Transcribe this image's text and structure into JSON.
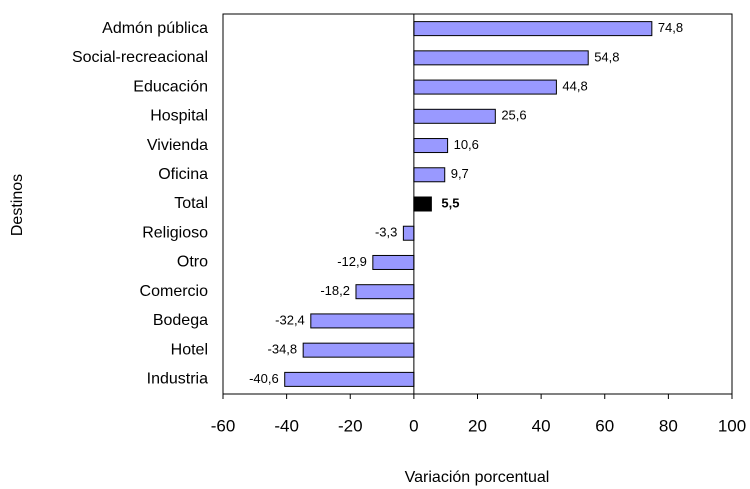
{
  "chart_data": {
    "type": "barh",
    "categories": [
      "Admón pública",
      "Social-recreacional",
      "Educación",
      "Hospital",
      "Vivienda",
      "Oficina",
      "Total",
      "Religioso",
      "Otro",
      "Comercio",
      "Bodega",
      "Hotel",
      "Industria"
    ],
    "values": [
      74.8,
      54.8,
      44.8,
      25.6,
      10.6,
      9.7,
      5.5,
      -3.3,
      -12.9,
      -18.2,
      -32.4,
      -34.8,
      -40.6
    ],
    "value_labels": [
      "74,8",
      "54,8",
      "44,8",
      "25,6",
      "10,6",
      "9,7",
      "5,5",
      "-3,3",
      "-12,9",
      "-18,2",
      "-32,4",
      "-34,8",
      "-40,6"
    ],
    "color": "#9999ff",
    "highlight": "Total",
    "highlight_color": "#000000",
    "xlabel": "Variación porcentual",
    "ylabel": "Destinos",
    "xlim": [
      -60,
      100
    ],
    "xticks": [
      -60,
      -40,
      -20,
      0,
      20,
      40,
      60,
      80,
      100
    ],
    "grid": false
  }
}
